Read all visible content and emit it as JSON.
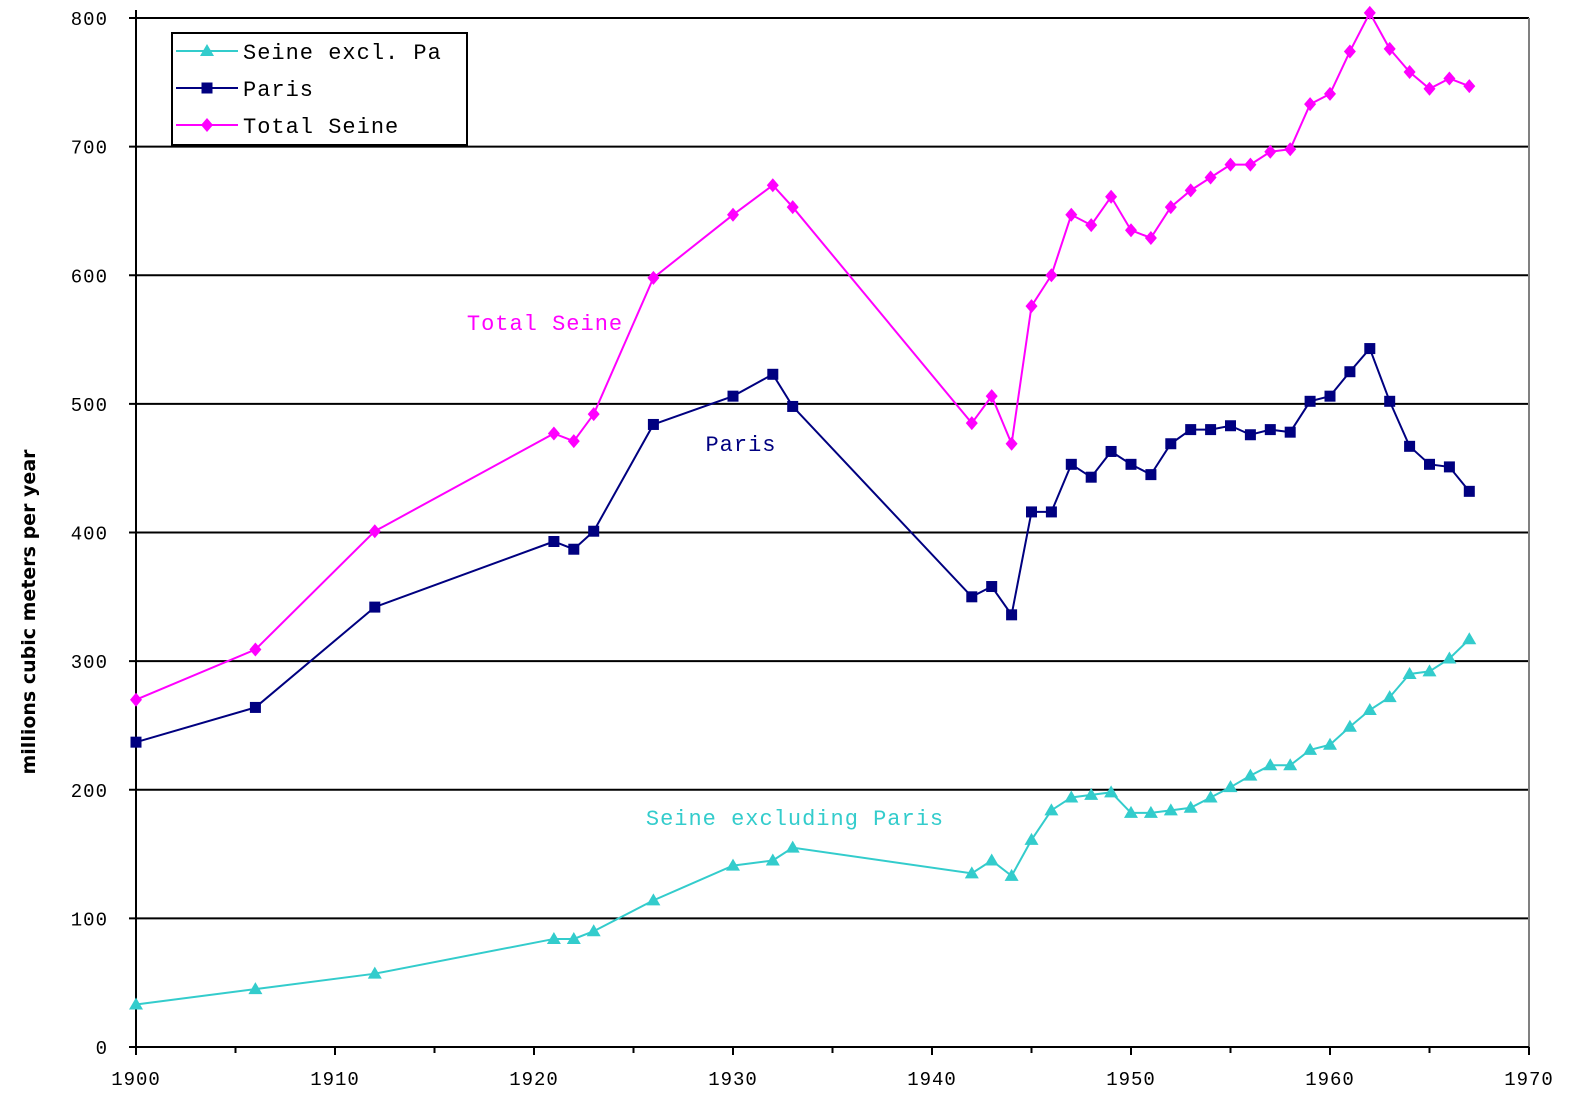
{
  "chart_data": {
    "type": "line",
    "title": "",
    "xlabel": "",
    "ylabel": "millions cubic meters per year",
    "xlim": [
      1900,
      1970
    ],
    "ylim": [
      0,
      800
    ],
    "xticks": [
      1900,
      1910,
      1920,
      1930,
      1940,
      1950,
      1960,
      1970
    ],
    "yticks": [
      0,
      100,
      200,
      300,
      400,
      500,
      600,
      700,
      800
    ],
    "grid": "horizontal",
    "legend": {
      "placement": "top-left",
      "order": [
        0,
        1,
        2
      ]
    },
    "series": [
      {
        "name": "Seine excl. Pa",
        "color": "#33CCCC",
        "marker": "triangle",
        "annotation": "Seine excluding Paris",
        "x": [
          1900,
          1906,
          1912,
          1921,
          1922,
          1923,
          1926,
          1930,
          1932,
          1933,
          1942,
          1943,
          1944,
          1945,
          1946,
          1947,
          1948,
          1949,
          1950,
          1951,
          1952,
          1953,
          1954,
          1955,
          1956,
          1957,
          1958,
          1959,
          1960,
          1961,
          1962,
          1963,
          1964,
          1965,
          1966,
          1967
        ],
        "y": [
          33,
          45,
          57,
          84,
          84,
          90,
          114,
          141,
          145,
          155,
          135,
          145,
          133,
          161,
          184,
          194,
          196,
          198,
          182,
          182,
          184,
          186,
          194,
          202,
          211,
          219,
          219,
          231,
          235,
          249,
          262,
          272,
          290,
          292,
          302,
          317
        ]
      },
      {
        "name": "Paris",
        "color": "#000080",
        "marker": "square",
        "annotation": "Paris",
        "x": [
          1900,
          1906,
          1912,
          1921,
          1922,
          1923,
          1926,
          1930,
          1932,
          1933,
          1942,
          1943,
          1944,
          1945,
          1946,
          1947,
          1948,
          1949,
          1950,
          1951,
          1952,
          1953,
          1954,
          1955,
          1956,
          1957,
          1958,
          1959,
          1960,
          1961,
          1962,
          1963,
          1964,
          1965,
          1966,
          1967
        ],
        "y": [
          237,
          264,
          342,
          393,
          387,
          401,
          484,
          506,
          523,
          498,
          350,
          358,
          336,
          416,
          416,
          453,
          443,
          463,
          453,
          445,
          469,
          480,
          480,
          483,
          476,
          480,
          478,
          502,
          506,
          525,
          543,
          502,
          467,
          453,
          451,
          432
        ]
      },
      {
        "name": "Total Seine",
        "color": "#FF00FF",
        "marker": "diamond",
        "annotation": "Total Seine",
        "x": [
          1900,
          1906,
          1912,
          1921,
          1922,
          1923,
          1926,
          1930,
          1932,
          1933,
          1942,
          1943,
          1944,
          1945,
          1946,
          1947,
          1948,
          1949,
          1950,
          1951,
          1952,
          1953,
          1954,
          1955,
          1956,
          1957,
          1958,
          1959,
          1960,
          1961,
          1962,
          1963,
          1964,
          1965,
          1966,
          1967
        ],
        "y": [
          270,
          309,
          401,
          477,
          471,
          492,
          598,
          647,
          670,
          653,
          485,
          506,
          469,
          576,
          600,
          647,
          639,
          661,
          635,
          629,
          653,
          666,
          676,
          686,
          686,
          696,
          698,
          733,
          741,
          774,
          804,
          776,
          758,
          745,
          753,
          747
        ]
      }
    ]
  }
}
